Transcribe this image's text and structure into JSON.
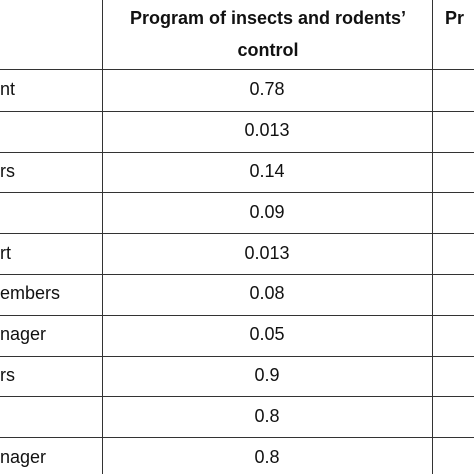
{
  "table": {
    "header": [
      "Program of insects and rodents’ control",
      "Pr"
    ],
    "rows": [
      [
        "nt",
        "0.78"
      ],
      [
        null,
        "0.013"
      ],
      [
        "rs",
        "0.14"
      ],
      [
        null,
        "0.09"
      ],
      [
        "rt",
        "0.013"
      ],
      [
        "embers",
        "0.08"
      ],
      [
        "nager",
        "0.05"
      ],
      [
        "rs",
        "0.9"
      ],
      [
        null,
        "0.8"
      ],
      [
        "nager",
        "0.8"
      ]
    ]
  }
}
